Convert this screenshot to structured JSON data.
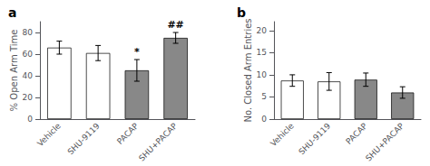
{
  "chart_data": [
    {
      "type": "bar",
      "title": "a",
      "ylabel": "% Open Arm Time",
      "categories": [
        "Vehicle",
        "SHU-9119",
        "PACAP",
        "SHU+PACAP"
      ],
      "values": [
        66,
        61,
        45,
        75
      ],
      "errors": [
        6,
        7,
        10,
        5
      ],
      "annotations": [
        null,
        null,
        "*",
        "##"
      ],
      "colors": [
        "white",
        "white",
        "#888888",
        "#888888"
      ],
      "ylim": [
        0,
        90
      ],
      "yticks": [
        0,
        20,
        40,
        60,
        80
      ]
    },
    {
      "type": "bar",
      "title": "b",
      "ylabel": "No. Closed Arm Entries",
      "categories": [
        "Vehicle",
        "SHU-9119",
        "PACAP",
        "SHU+PACAP"
      ],
      "values": [
        8.7,
        8.5,
        8.9,
        6.0
      ],
      "errors": [
        1.3,
        2.0,
        1.5,
        1.3
      ],
      "colors": [
        "white",
        "white",
        "#888888",
        "#888888"
      ],
      "ylim": [
        0,
        22
      ],
      "yticks": [
        0,
        5,
        10,
        15,
        20
      ]
    }
  ]
}
